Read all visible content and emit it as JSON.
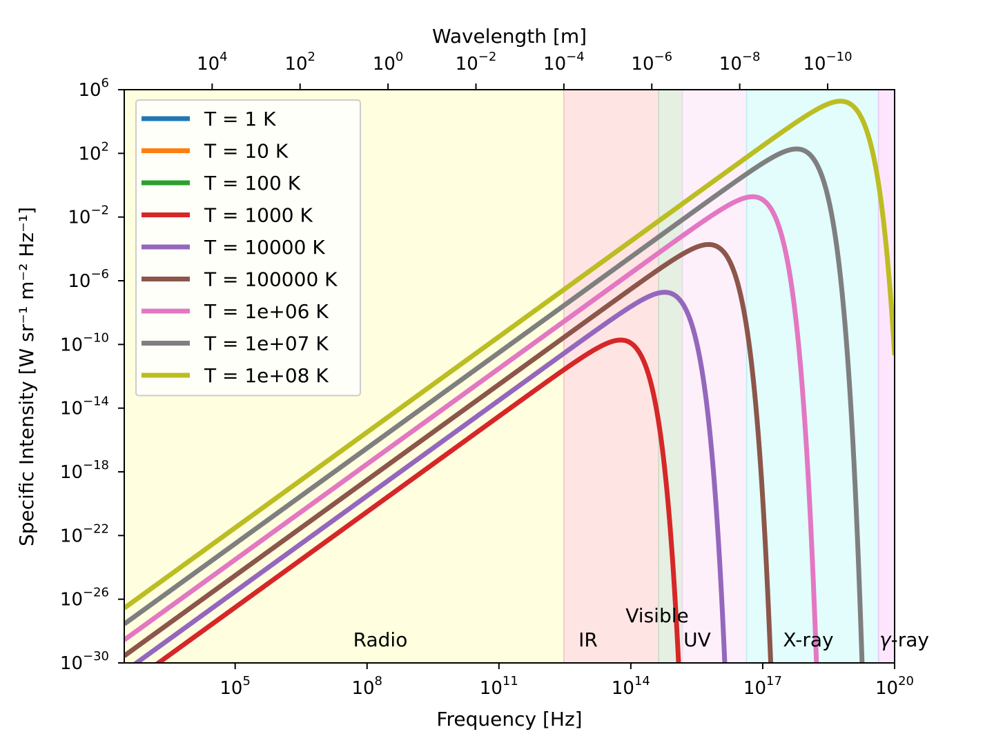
{
  "chart_data": {
    "type": "line",
    "title": "",
    "xlabel": "Frequency [Hz]",
    "ylabel": "Specific Intensity [W sr⁻¹ m⁻² Hz⁻¹]",
    "top_xlabel": "Wavelength [m]",
    "x_scale": "log",
    "y_scale": "log",
    "xlim": [
      300,
      1e+20
    ],
    "ylim": [
      1e-30,
      1000000.0
    ],
    "x_ticks": [
      {
        "value": 100000.0,
        "label": "10^5"
      },
      {
        "value": 100000000.0,
        "label": "10^8"
      },
      {
        "value": 100000000000.0,
        "label": "10^11"
      },
      {
        "value": 100000000000000.0,
        "label": "10^14"
      },
      {
        "value": 1e+17,
        "label": "10^17"
      },
      {
        "value": 1e+20,
        "label": "10^20"
      }
    ],
    "y_ticks": [
      {
        "value": 1000000.0,
        "label": "10^6"
      },
      {
        "value": 100.0,
        "label": "10^2"
      },
      {
        "value": 0.01,
        "label": "10^−2"
      },
      {
        "value": 1e-06,
        "label": "10^−6"
      },
      {
        "value": 1e-10,
        "label": "10^−10"
      },
      {
        "value": 1e-14,
        "label": "10^−14"
      },
      {
        "value": 1e-18,
        "label": "10^−18"
      },
      {
        "value": 1e-22,
        "label": "10^−22"
      },
      {
        "value": 1e-26,
        "label": "10^−26"
      },
      {
        "value": 1e-30,
        "label": "10^−30"
      }
    ],
    "top_x_ticks": [
      {
        "wavelength": 10000.0,
        "label": "10^4"
      },
      {
        "wavelength": 100.0,
        "label": "10^2"
      },
      {
        "wavelength": 1.0,
        "label": "10^0"
      },
      {
        "wavelength": 0.01,
        "label": "10^−2"
      },
      {
        "wavelength": 0.0001,
        "label": "10^−4"
      },
      {
        "wavelength": 1e-06,
        "label": "10^−6"
      },
      {
        "wavelength": 1e-08,
        "label": "10^−8"
      },
      {
        "wavelength": 1e-10,
        "label": "10^−10"
      }
    ],
    "regions": [
      {
        "name": "Radio",
        "from": 300,
        "to": 3000000000000.0,
        "color": "#ffffe0",
        "edge": "#f0e6a0"
      },
      {
        "name": "IR",
        "from": 3000000000000.0,
        "to": 430000000000000.0,
        "color": "#ffe4e4",
        "edge": "#f4c0c0"
      },
      {
        "name": "Visible",
        "from": 430000000000000.0,
        "to": 1500000000000000.0,
        "color": "#e5efe2",
        "edge": "#c8d8c4"
      },
      {
        "name": "UV",
        "from": 1500000000000000.0,
        "to": 4.3e+16,
        "color": "#fdf0fb",
        "edge": "#f0d8f0"
      },
      {
        "name": "X-ray",
        "from": 4.3e+16,
        "to": 4.3e+19,
        "color": "#e2fdfc",
        "edge": "#bfeaf0"
      },
      {
        "name": "γ-ray",
        "from": 4.3e+19,
        "to": 1e+20,
        "color": "#fde6fd",
        "edge": "#e8c8f0"
      }
    ],
    "series": [
      {
        "name": "T = 1 K",
        "temperature": 1,
        "color": "#1f77b4"
      },
      {
        "name": "T = 10 K",
        "temperature": 10,
        "color": "#ff7f0e"
      },
      {
        "name": "T = 100 K",
        "temperature": 100,
        "color": "#2ca02c"
      },
      {
        "name": "T = 1000 K",
        "temperature": 1000,
        "color": "#d62728"
      },
      {
        "name": "T = 10000 K",
        "temperature": 10000,
        "color": "#9467bd"
      },
      {
        "name": "T = 100000 K",
        "temperature": 100000,
        "color": "#8c564b"
      },
      {
        "name": "T = 1e+06 K",
        "temperature": 1000000,
        "color": "#e377c2"
      },
      {
        "name": "T = 1e+07 K",
        "temperature": 10000000,
        "color": "#7f7f7f"
      },
      {
        "name": "T = 1e+08 K",
        "temperature": 100000000,
        "color": "#bcbd22"
      }
    ],
    "legend_position": "upper-left",
    "grid": false
  }
}
